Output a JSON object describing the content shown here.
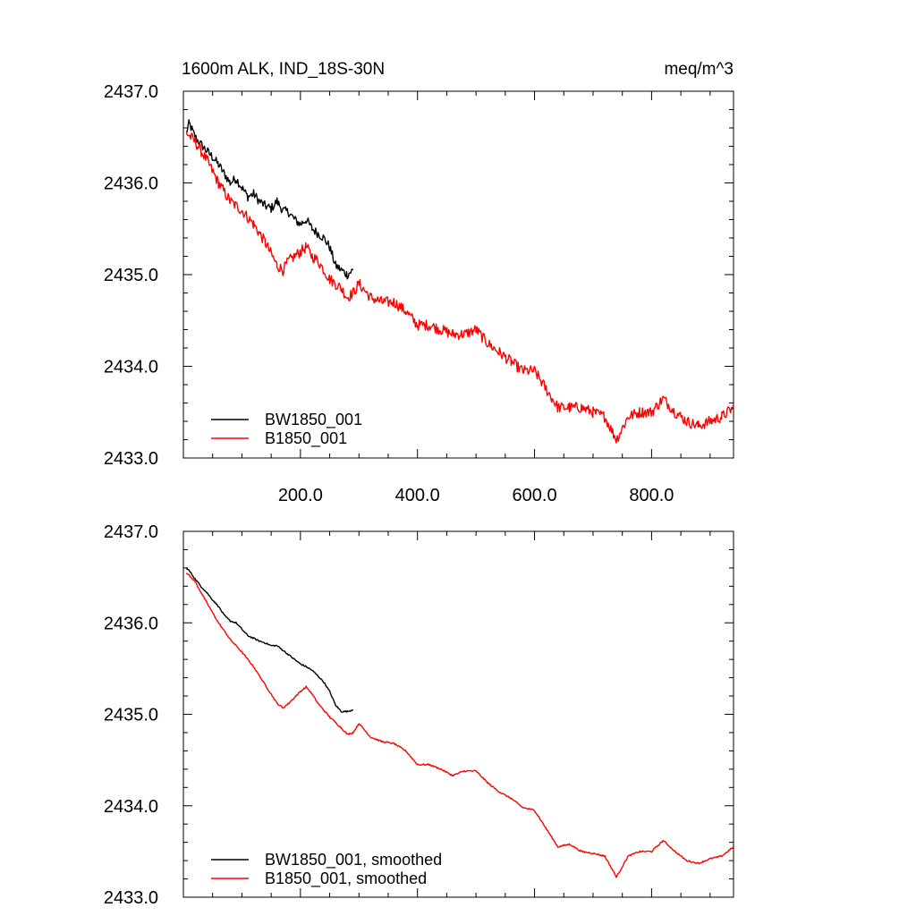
{
  "chart_data": [
    {
      "type": "line",
      "title": "1600m ALK, IND_18S-30N",
      "title_right": "meq/m^3",
      "xlim": [
        0,
        940
      ],
      "ylim": [
        2433.0,
        2437.0
      ],
      "x_ticks": [
        200,
        400,
        600,
        800
      ],
      "x_tick_labels": [
        "200.0",
        "400.0",
        "600.0",
        "800.0"
      ],
      "y_ticks": [
        2433,
        2434,
        2435,
        2436,
        2437
      ],
      "y_tick_labels": [
        "2433.0",
        "2434.0",
        "2435.0",
        "2436.0",
        "2437.0"
      ],
      "legend_position": "bottom-left",
      "series": [
        {
          "name": "BW1850_001",
          "color": "#000000",
          "x": [
            5,
            10,
            20,
            30,
            40,
            50,
            60,
            70,
            80,
            90,
            100,
            110,
            120,
            130,
            140,
            150,
            160,
            170,
            180,
            190,
            200,
            210,
            220,
            230,
            240,
            250,
            260,
            270,
            280,
            290
          ],
          "y": [
            2436.55,
            2436.65,
            2436.5,
            2436.42,
            2436.35,
            2436.28,
            2436.2,
            2436.1,
            2436.0,
            2436.05,
            2435.95,
            2435.85,
            2435.88,
            2435.8,
            2435.75,
            2435.72,
            2435.8,
            2435.7,
            2435.68,
            2435.6,
            2435.55,
            2435.6,
            2435.5,
            2435.45,
            2435.4,
            2435.3,
            2435.1,
            2435.05,
            2435.0,
            2435.05
          ],
          "noise": 0.05
        },
        {
          "name": "B1850_001",
          "color": "#ff0000",
          "x": [
            5,
            20,
            40,
            60,
            80,
            100,
            120,
            140,
            160,
            170,
            180,
            200,
            210,
            220,
            230,
            250,
            270,
            280,
            290,
            300,
            320,
            340,
            360,
            380,
            400,
            420,
            440,
            460,
            480,
            500,
            520,
            540,
            560,
            580,
            600,
            620,
            640,
            660,
            680,
            700,
            720,
            740,
            760,
            780,
            800,
            820,
            840,
            860,
            880,
            900,
            920,
            940
          ],
          "y": [
            2436.55,
            2436.45,
            2436.25,
            2436.0,
            2435.8,
            2435.7,
            2435.55,
            2435.35,
            2435.1,
            2435.05,
            2435.15,
            2435.25,
            2435.3,
            2435.2,
            2435.15,
            2434.95,
            2434.85,
            2434.75,
            2434.8,
            2434.9,
            2434.75,
            2434.7,
            2434.7,
            2434.6,
            2434.45,
            2434.45,
            2434.4,
            2434.35,
            2434.35,
            2434.4,
            2434.25,
            2434.15,
            2434.05,
            2433.95,
            2433.95,
            2433.75,
            2433.55,
            2433.55,
            2433.55,
            2433.5,
            2433.45,
            2433.2,
            2433.45,
            2433.5,
            2433.5,
            2433.65,
            2433.5,
            2433.4,
            2433.35,
            2433.4,
            2433.45,
            2433.55
          ],
          "noise": 0.06
        }
      ]
    },
    {
      "type": "line",
      "title": "",
      "xlim": [
        0,
        940
      ],
      "ylim": [
        2433.0,
        2437.0
      ],
      "x_ticks": [
        200,
        400,
        600,
        800
      ],
      "x_tick_labels": [],
      "y_ticks": [
        2433,
        2434,
        2435,
        2436,
        2437
      ],
      "y_tick_labels": [
        "2433.0",
        "2434.0",
        "2435.0",
        "2436.0",
        "2437.0"
      ],
      "legend_position": "bottom-left",
      "series": [
        {
          "name": "BW1850_001, smoothed",
          "color": "#000000",
          "x": [
            5,
            10,
            20,
            30,
            40,
            50,
            60,
            70,
            80,
            90,
            100,
            110,
            120,
            130,
            140,
            150,
            160,
            170,
            180,
            190,
            200,
            210,
            220,
            230,
            240,
            250,
            260,
            270,
            280,
            290
          ],
          "y": [
            2436.6,
            2436.57,
            2436.48,
            2436.4,
            2436.33,
            2436.25,
            2436.18,
            2436.08,
            2436.02,
            2436.0,
            2435.93,
            2435.86,
            2435.83,
            2435.8,
            2435.78,
            2435.75,
            2435.75,
            2435.7,
            2435.65,
            2435.6,
            2435.55,
            2435.52,
            2435.48,
            2435.42,
            2435.35,
            2435.25,
            2435.1,
            2435.03,
            2435.03,
            2435.05
          ],
          "noise": 0.008
        },
        {
          "name": "B1850_001, smoothed",
          "color": "#ff0000",
          "x": [
            5,
            20,
            40,
            60,
            80,
            100,
            120,
            140,
            160,
            170,
            180,
            200,
            210,
            220,
            230,
            250,
            270,
            280,
            290,
            300,
            320,
            340,
            360,
            380,
            400,
            420,
            440,
            460,
            480,
            500,
            520,
            540,
            560,
            580,
            600,
            620,
            640,
            660,
            680,
            700,
            720,
            740,
            760,
            780,
            800,
            820,
            840,
            860,
            880,
            900,
            920,
            940
          ],
          "y": [
            2436.55,
            2436.45,
            2436.22,
            2436.0,
            2435.82,
            2435.68,
            2435.52,
            2435.32,
            2435.12,
            2435.07,
            2435.12,
            2435.25,
            2435.3,
            2435.22,
            2435.12,
            2434.97,
            2434.85,
            2434.78,
            2434.8,
            2434.9,
            2434.75,
            2434.7,
            2434.68,
            2434.6,
            2434.45,
            2434.45,
            2434.4,
            2434.33,
            2434.38,
            2434.38,
            2434.25,
            2434.15,
            2434.08,
            2433.98,
            2433.95,
            2433.75,
            2433.55,
            2433.58,
            2433.5,
            2433.48,
            2433.45,
            2433.22,
            2433.45,
            2433.5,
            2433.5,
            2433.62,
            2433.5,
            2433.4,
            2433.37,
            2433.42,
            2433.45,
            2433.55
          ],
          "noise": 0.008
        }
      ]
    }
  ]
}
